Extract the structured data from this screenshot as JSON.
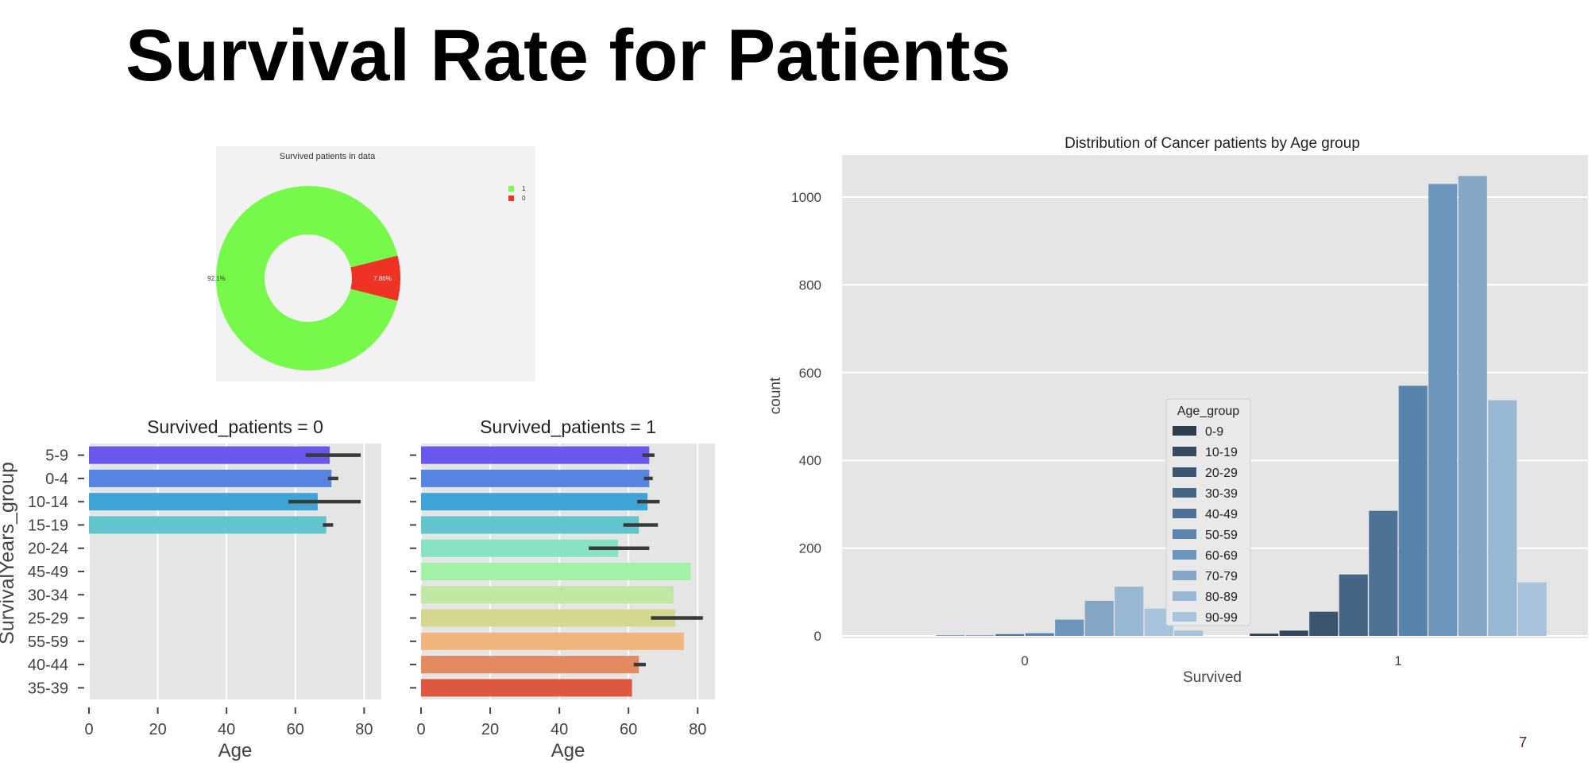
{
  "slide": {
    "title": "Survival Rate for Patients",
    "page_number": "7"
  },
  "chart_data": [
    {
      "id": "pie",
      "type": "pie",
      "style": "donut",
      "title": "Survived patients in data",
      "legend": [
        "1",
        "0"
      ],
      "legend_position": "top-right",
      "values": [
        92.14,
        7.86
      ],
      "value_labels": [
        "92.1%",
        "7.86%"
      ],
      "colors": [
        "#76f94b",
        "#ee3223"
      ]
    },
    {
      "id": "facet",
      "type": "bar",
      "orientation": "horizontal",
      "ylabel": "SurvivalYears_group",
      "xlabel": "Age",
      "xlim": [
        0,
        85
      ],
      "xticks": [
        "0",
        "20",
        "40",
        "60",
        "80"
      ],
      "categories": [
        "5-9",
        "0-4",
        "10-14",
        "15-19",
        "20-24",
        "45-49",
        "30-34",
        "25-29",
        "55-59",
        "40-44",
        "35-39"
      ],
      "colors": [
        "#6a57eb",
        "#5684e2",
        "#3ea4d6",
        "#62c5cd",
        "#88e2c4",
        "#a1f1a7",
        "#c1e8a3",
        "#d4d78e",
        "#efb57a",
        "#e38a60",
        "#e0573f"
      ],
      "panels": [
        {
          "title": "Survived_patients = 0",
          "values": [
            70,
            70.5,
            66.5,
            69,
            null,
            null,
            null,
            null,
            null,
            null,
            null
          ],
          "err_low": [
            63,
            69.5,
            58,
            68,
            null,
            null,
            null,
            null,
            null,
            null,
            null
          ],
          "err_high": [
            79,
            72.5,
            79,
            71,
            null,
            null,
            null,
            null,
            null,
            null,
            null
          ]
        },
        {
          "title": "Survived_patients = 1",
          "values": [
            66,
            66,
            65.5,
            63,
            57,
            78,
            73,
            73.5,
            76,
            63,
            61
          ],
          "err_low": [
            64,
            64.5,
            62.5,
            58.5,
            48.5,
            null,
            null,
            66.5,
            null,
            61.5,
            null
          ],
          "err_high": [
            67.5,
            67,
            69,
            68.5,
            66,
            null,
            null,
            81.5,
            null,
            65,
            null
          ]
        }
      ]
    },
    {
      "id": "dist",
      "type": "bar",
      "title": "Distribution of Cancer patients by Age group",
      "xlabel": "Survived",
      "ylabel": "count",
      "categories": [
        "0",
        "1"
      ],
      "ylim": [
        0,
        1100
      ],
      "yticks": [
        "0",
        "200",
        "400",
        "600",
        "800",
        "1000"
      ],
      "legend_title": "Age_group",
      "legend_position": "center-left",
      "series": [
        {
          "name": "0-9",
          "color": "#2d3d4c",
          "values": [
            0,
            5
          ]
        },
        {
          "name": "10-19",
          "color": "#34495f",
          "values": [
            0,
            12
          ]
        },
        {
          "name": "20-29",
          "color": "#3c5672",
          "values": [
            1,
            55
          ]
        },
        {
          "name": "30-39",
          "color": "#456584",
          "values": [
            1,
            140
          ]
        },
        {
          "name": "40-49",
          "color": "#4e7296",
          "values": [
            4,
            285
          ]
        },
        {
          "name": "50-59",
          "color": "#5883aa",
          "values": [
            6,
            570
          ]
        },
        {
          "name": "60-69",
          "color": "#6b95bb",
          "values": [
            37,
            1030
          ]
        },
        {
          "name": "70-79",
          "color": "#85a6c4",
          "values": [
            80,
            1048
          ]
        },
        {
          "name": "80-89",
          "color": "#98b7d3",
          "values": [
            112,
            537
          ]
        },
        {
          "name": "90-99",
          "color": "#a8c4dd",
          "values": [
            62,
            122
          ]
        }
      ],
      "extra_bar": {
        "category": "0",
        "value": 12
      }
    }
  ]
}
